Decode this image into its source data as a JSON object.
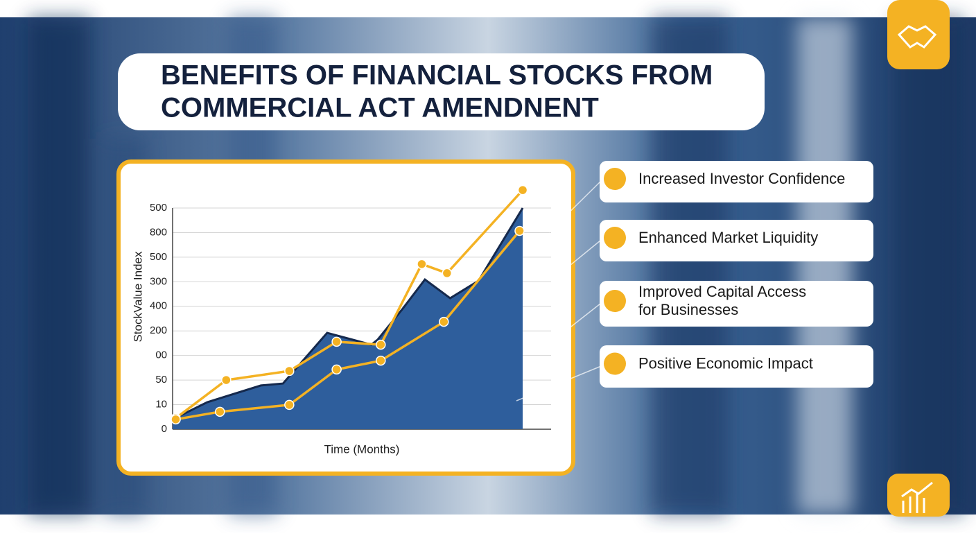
{
  "chart_data": {
    "type": "line",
    "title": [
      "BENEFITS OF FINANCIAL STOCKS FROM",
      "COMMERCIAL ACT AMENDNENT"
    ],
    "y_label": "StockValue Index",
    "x_label": "Time (Months)",
    "ylim": [
      0,
      9
    ],
    "yticks": [
      {
        "value": 0,
        "label": "0"
      },
      {
        "value": 1,
        "label": "10"
      },
      {
        "value": 2,
        "label": "50"
      },
      {
        "value": 3,
        "label": "00"
      },
      {
        "value": 4,
        "label": "200"
      },
      {
        "value": 5,
        "label": "400"
      },
      {
        "value": 6,
        "label": "300"
      },
      {
        "value": 7,
        "label": "500"
      },
      {
        "value": 8,
        "label": "800"
      },
      {
        "value": 9,
        "label": "500"
      }
    ],
    "xlim": [
      0,
      12
    ],
    "grid": true,
    "series": [
      {
        "type": "area",
        "color": "#2e5e9c",
        "x": [
          0,
          1.1,
          1.8,
          2.8,
          3.5,
          4.9,
          6.3,
          6.5,
          7.3,
          8.0,
          8.8,
          9.7,
          11.1
        ],
        "values": [
          0.4,
          1.1,
          1.38,
          1.78,
          1.86,
          3.92,
          3.44,
          3.64,
          4.91,
          6.09,
          5.33,
          6.04,
          9.0
        ]
      },
      {
        "type": "line",
        "color": "#f4b223",
        "x": [
          0.1,
          1.7,
          3.7,
          5.2,
          6.6,
          7.9,
          8.7,
          11.1
        ],
        "values": [
          0.45,
          2.0,
          2.37,
          3.56,
          3.44,
          6.72,
          6.35,
          9.73
        ]
      },
      {
        "type": "line",
        "color": "#f4b223",
        "x": [
          0.1,
          1.5,
          3.7,
          5.2,
          6.6,
          8.6,
          11.0
        ],
        "values": [
          0.4,
          0.71,
          0.99,
          2.43,
          2.79,
          4.37,
          8.07
        ]
      }
    ],
    "annotations": [
      [
        "Increased Investor Confidence"
      ],
      [
        "Enhanced Market Liquidity"
      ],
      [
        "Improved Capital Access",
        "for Businesses"
      ],
      [
        "Positive Economic Impact"
      ]
    ]
  }
}
